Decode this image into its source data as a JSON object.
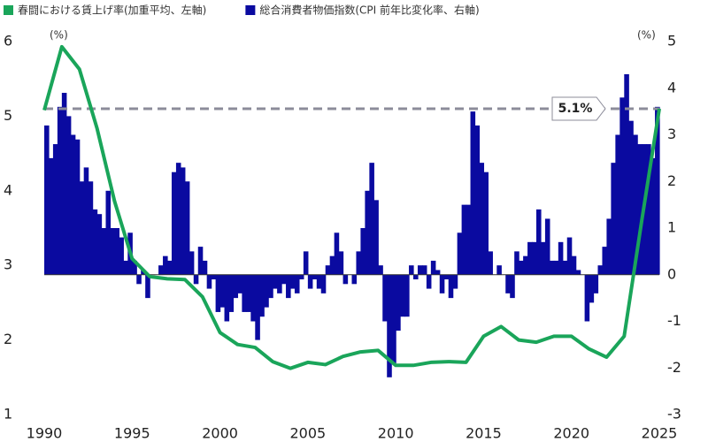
{
  "chart_data": {
    "type": "line",
    "xlim": [
      1990,
      2025
    ],
    "xticks": [
      1990,
      1995,
      2000,
      2005,
      2010,
      2015,
      2020,
      2025
    ],
    "ylim": [
      1,
      6
    ],
    "yticks": [
      1,
      2,
      3,
      4,
      5,
      6
    ],
    "ylabel": "(%)",
    "y2lim": [
      -3,
      5
    ],
    "y2ticks": [
      -3,
      -2,
      -1,
      0,
      1,
      2,
      3,
      4,
      5
    ],
    "y2label": "(%)",
    "reference_line": {
      "value": 5.1,
      "label": "5.1%",
      "color": "#8c8c9a"
    },
    "series": [
      {
        "name": "春闘における賃上げ率(加重平均、左軸)",
        "type": "line",
        "color": "#1aa55a",
        "axis": "y",
        "x": [
          1990,
          1991,
          1992,
          1993,
          1994,
          1995,
          1996,
          1997,
          1998,
          1999,
          2000,
          2001,
          2002,
          2003,
          2004,
          2005,
          2006,
          2007,
          2008,
          2009,
          2010,
          2011,
          2012,
          2013,
          2014,
          2015,
          2016,
          2017,
          2018,
          2019,
          2020,
          2021,
          2022,
          2023,
          2024,
          2025
        ],
        "values": [
          5.08,
          5.93,
          5.63,
          4.84,
          3.86,
          3.09,
          2.85,
          2.82,
          2.81,
          2.58,
          2.1,
          1.94,
          1.9,
          1.71,
          1.62,
          1.7,
          1.67,
          1.78,
          1.84,
          1.86,
          1.66,
          1.66,
          1.7,
          1.71,
          1.7,
          2.05,
          2.18,
          2.0,
          1.97,
          2.05,
          2.05,
          1.88,
          1.77,
          2.05,
          3.6,
          5.1
        ]
      },
      {
        "name": "総合消費者物価指数(CPI 前年比変化率、右軸)",
        "type": "area",
        "color": "#0a0aa0",
        "axis": "y2",
        "x": [
          1990,
          1990.25,
          1990.5,
          1990.75,
          1991,
          1991.25,
          1991.5,
          1991.75,
          1992,
          1992.25,
          1992.5,
          1992.75,
          1993,
          1993.25,
          1993.5,
          1993.75,
          1994,
          1994.25,
          1994.5,
          1994.75,
          1995,
          1995.25,
          1995.5,
          1995.75,
          1996,
          1996.25,
          1996.5,
          1996.75,
          1997,
          1997.25,
          1997.5,
          1997.75,
          1998,
          1998.25,
          1998.5,
          1998.75,
          1999,
          1999.25,
          1999.5,
          1999.75,
          2000,
          2000.25,
          2000.5,
          2000.75,
          2001,
          2001.25,
          2001.5,
          2001.75,
          2002,
          2002.25,
          2002.5,
          2002.75,
          2003,
          2003.25,
          2003.5,
          2003.75,
          2004,
          2004.25,
          2004.5,
          2004.75,
          2005,
          2005.25,
          2005.5,
          2005.75,
          2006,
          2006.25,
          2006.5,
          2006.75,
          2007,
          2007.25,
          2007.5,
          2007.75,
          2008,
          2008.25,
          2008.5,
          2008.75,
          2009,
          2009.25,
          2009.5,
          2009.75,
          2010,
          2010.25,
          2010.5,
          2010.75,
          2011,
          2011.25,
          2011.5,
          2011.75,
          2012,
          2012.25,
          2012.5,
          2012.75,
          2013,
          2013.25,
          2013.5,
          2013.75,
          2014,
          2014.25,
          2014.5,
          2014.75,
          2015,
          2015.25,
          2015.5,
          2015.75,
          2016,
          2016.25,
          2016.5,
          2016.75,
          2017,
          2017.25,
          2017.5,
          2017.75,
          2018,
          2018.25,
          2018.5,
          2018.75,
          2019,
          2019.25,
          2019.5,
          2019.75,
          2020,
          2020.25,
          2020.5,
          2020.75,
          2021,
          2021.25,
          2021.5,
          2021.75,
          2022,
          2022.25,
          2022.5,
          2022.75,
          2023,
          2023.25,
          2023.5,
          2023.75,
          2024,
          2024.25,
          2024.5,
          2024.75
        ],
        "values": [
          3.2,
          2.5,
          2.8,
          3.6,
          3.9,
          3.4,
          3.0,
          2.9,
          2.0,
          2.3,
          2.0,
          1.4,
          1.3,
          1.0,
          1.8,
          1.0,
          1.0,
          0.8,
          0.3,
          0.9,
          0.3,
          -0.2,
          0.1,
          -0.5,
          0.0,
          0.0,
          0.2,
          0.4,
          0.3,
          2.2,
          2.4,
          2.3,
          2.0,
          0.5,
          -0.2,
          0.6,
          0.3,
          -0.3,
          -0.1,
          -0.8,
          -0.7,
          -1.0,
          -0.8,
          -0.5,
          -0.4,
          -0.8,
          -0.8,
          -1.0,
          -1.4,
          -0.9,
          -0.7,
          -0.5,
          -0.3,
          -0.4,
          -0.2,
          -0.5,
          -0.3,
          -0.4,
          -0.1,
          0.5,
          -0.3,
          -0.1,
          -0.3,
          -0.4,
          0.2,
          0.4,
          0.9,
          0.5,
          -0.2,
          0.0,
          -0.2,
          0.5,
          1.0,
          1.8,
          2.4,
          1.6,
          0.2,
          -1.0,
          -2.2,
          -1.9,
          -1.2,
          -0.9,
          -0.9,
          0.2,
          -0.1,
          0.2,
          0.2,
          -0.3,
          0.3,
          0.1,
          -0.4,
          -0.1,
          -0.5,
          -0.3,
          0.9,
          1.5,
          1.5,
          3.5,
          3.2,
          2.4,
          2.2,
          0.5,
          0.0,
          0.2,
          0.0,
          -0.4,
          -0.5,
          0.5,
          0.3,
          0.4,
          0.7,
          0.7,
          1.4,
          0.7,
          1.2,
          0.3,
          0.3,
          0.7,
          0.3,
          0.8,
          0.4,
          0.1,
          0.0,
          -1.0,
          -0.6,
          -0.4,
          0.2,
          0.6,
          1.2,
          2.4,
          3.0,
          3.8,
          4.3,
          3.3,
          3.0,
          2.8,
          2.8,
          2.8,
          2.5,
          3.6
        ]
      }
    ]
  }
}
